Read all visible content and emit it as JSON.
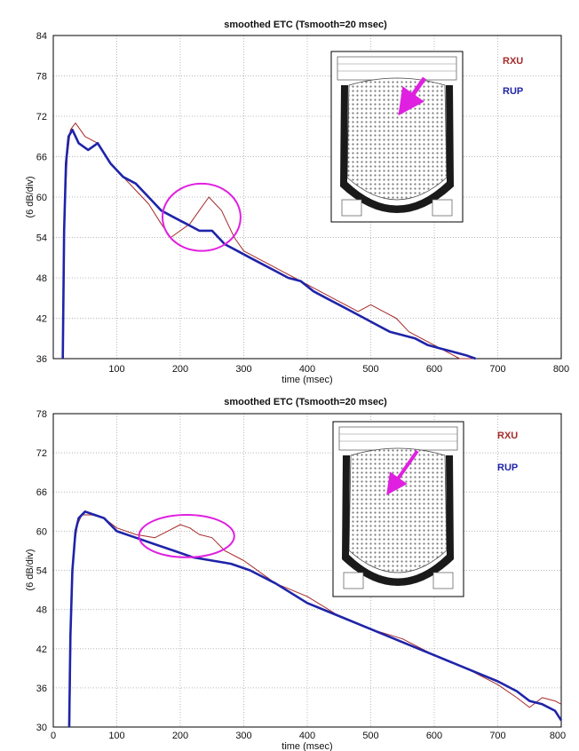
{
  "chart_data": [
    {
      "type": "line",
      "title": "smoothed ETC (Tsmooth=20 msec)",
      "xlabel": "time (msec)",
      "ylabel": "(6 dB/div)",
      "xlim": [
        0,
        800
      ],
      "ylim": [
        36,
        84
      ],
      "xticks": [
        "100",
        "200",
        "300",
        "400",
        "500",
        "600",
        "700",
        "800"
      ],
      "yticks": [
        "36",
        "42",
        "48",
        "54",
        "60",
        "66",
        "72",
        "78",
        "84"
      ],
      "grid": true,
      "legend": {
        "position": "top-right",
        "entries": [
          "RXU",
          "RUP"
        ]
      },
      "inset": "seating plan with arrow marking receiver position (front-centre stalls)",
      "highlight": {
        "shape": "ellipse",
        "color": "#e020e0",
        "x": [
          172,
          295
        ],
        "y": [
          52,
          62
        ]
      },
      "series": [
        {
          "name": "RXU",
          "color": "#a52a2a",
          "x": [
            15,
            18,
            22,
            27,
            35,
            50,
            70,
            90,
            110,
            130,
            150,
            170,
            185,
            200,
            215,
            230,
            245,
            255,
            265,
            275,
            285,
            300,
            320,
            340,
            360,
            380,
            400,
            420,
            440,
            460,
            480,
            500,
            520,
            540,
            560,
            580,
            600,
            620,
            640,
            660
          ],
          "y": [
            36,
            58,
            66,
            70,
            71,
            69,
            68,
            65,
            63,
            61,
            59,
            56,
            54,
            55,
            56,
            58,
            60,
            59,
            58,
            56,
            54,
            52,
            51,
            50,
            49,
            48,
            47,
            46,
            45,
            44,
            43,
            44,
            43,
            42,
            40,
            39,
            38,
            37,
            36,
            36
          ]
        },
        {
          "name": "RUP",
          "color": "#1f24a8",
          "x": [
            15,
            17,
            20,
            24,
            30,
            40,
            55,
            70,
            90,
            110,
            130,
            150,
            170,
            190,
            210,
            230,
            250,
            270,
            290,
            310,
            330,
            350,
            370,
            390,
            410,
            430,
            450,
            470,
            490,
            510,
            530,
            550,
            570,
            590,
            610,
            630,
            650,
            665
          ],
          "y": [
            36,
            55,
            65,
            69,
            70,
            68,
            67,
            68,
            65,
            63,
            62,
            60,
            58,
            57,
            56,
            55,
            55,
            53,
            52,
            51,
            50,
            49,
            48,
            47.5,
            46,
            45,
            44,
            43,
            42,
            41,
            40,
            39.5,
            39,
            38,
            37.5,
            37,
            36.5,
            36
          ]
        }
      ]
    },
    {
      "type": "line",
      "title": "smoothed ETC (Tsmooth=20 msec)",
      "xlabel": "time (msec)",
      "ylabel": "(6 dB/div)",
      "xlim": [
        0,
        800
      ],
      "ylim": [
        30,
        78
      ],
      "xticks": [
        "0",
        "100",
        "200",
        "300",
        "400",
        "500",
        "600",
        "700",
        "800"
      ],
      "yticks": [
        "30",
        "36",
        "42",
        "48",
        "54",
        "60",
        "66",
        "72",
        "78"
      ],
      "grid": true,
      "legend": {
        "position": "top-right",
        "entries": [
          "RXU",
          "RUP"
        ]
      },
      "inset": "seating plan with arrow marking receiver position (mid stalls)",
      "highlight": {
        "shape": "ellipse",
        "color": "#e020e0",
        "x": [
          135,
          285
        ],
        "y": [
          56,
          62.5
        ]
      },
      "series": [
        {
          "name": "RXU",
          "color": "#a52a2a",
          "x": [
            26,
            28,
            32,
            38,
            45,
            60,
            80,
            100,
            130,
            160,
            180,
            200,
            215,
            230,
            250,
            270,
            300,
            350,
            400,
            450,
            500,
            550,
            600,
            650,
            700,
            730,
            750,
            770,
            790,
            800
          ],
          "y": [
            30,
            46,
            57,
            61,
            62.5,
            62.5,
            62,
            60.5,
            59.5,
            59,
            60,
            61,
            60.5,
            59.5,
            59,
            57,
            55.5,
            52,
            50,
            47,
            45,
            43.5,
            41,
            39,
            36.5,
            34.5,
            33,
            34.5,
            34,
            33.5
          ]
        },
        {
          "name": "RUP",
          "color": "#1f24a8",
          "x": [
            25,
            27,
            30,
            35,
            40,
            50,
            65,
            80,
            100,
            130,
            160,
            190,
            220,
            250,
            280,
            310,
            350,
            400,
            450,
            500,
            550,
            600,
            650,
            700,
            730,
            750,
            770,
            790,
            800
          ],
          "y": [
            30,
            44,
            54,
            60,
            62,
            63,
            62.5,
            62,
            60,
            59,
            58,
            57,
            56,
            55.5,
            55,
            54,
            52,
            49,
            47,
            45,
            43,
            41,
            39,
            37,
            35.5,
            34,
            33.5,
            32.5,
            31
          ]
        }
      ]
    }
  ]
}
